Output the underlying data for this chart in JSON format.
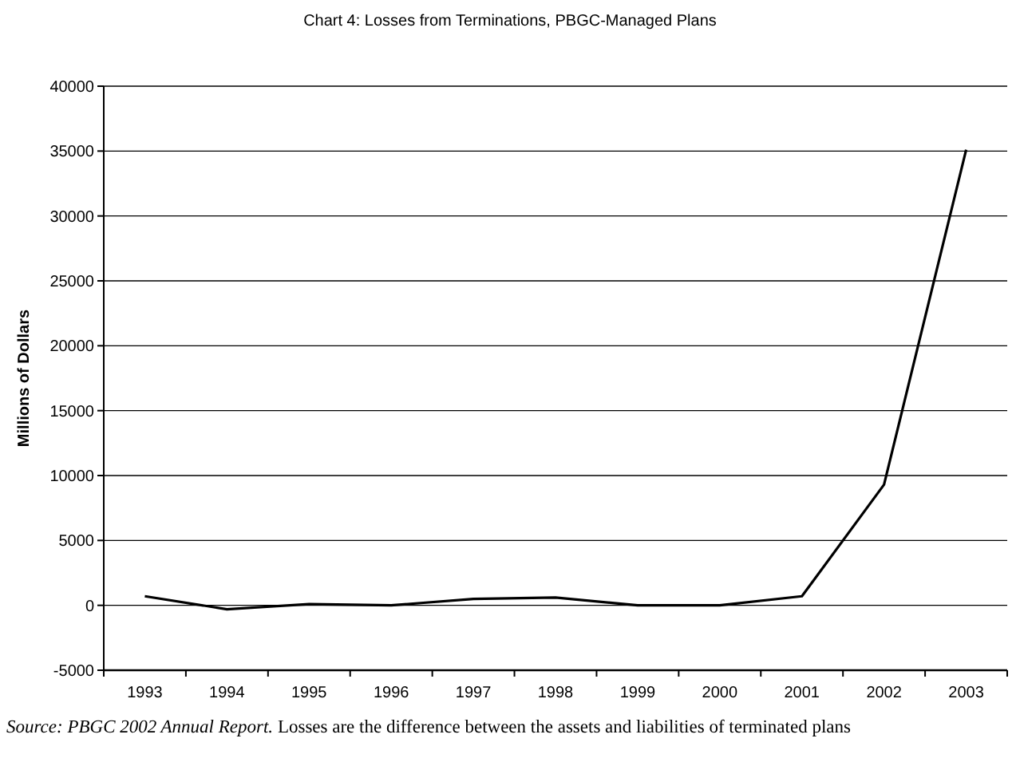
{
  "chart_data": {
    "type": "line",
    "title": "Chart 4: Losses from Terminations, PBGC-Managed Plans",
    "ylabel": "Millions of Dollars",
    "categories": [
      "1993",
      "1994",
      "1995",
      "1996",
      "1997",
      "1998",
      "1999",
      "2000",
      "2001",
      "2002",
      "2003"
    ],
    "series": [
      {
        "color": "#000000",
        "values": [
          700,
          -300,
          100,
          0,
          500,
          600,
          0,
          0,
          700,
          9300,
          35100
        ]
      }
    ],
    "ylim": [
      -5000,
      40000
    ],
    "yticks": [
      -5000,
      0,
      5000,
      10000,
      15000,
      20000,
      25000,
      30000,
      35000,
      40000
    ],
    "grid": "y",
    "marker": "none",
    "line_style": "solid",
    "annotations": [
      "Source: PBGC 2002 Annual Report.",
      "Losses are the difference between the assets and liabilities of terminated plans"
    ]
  }
}
